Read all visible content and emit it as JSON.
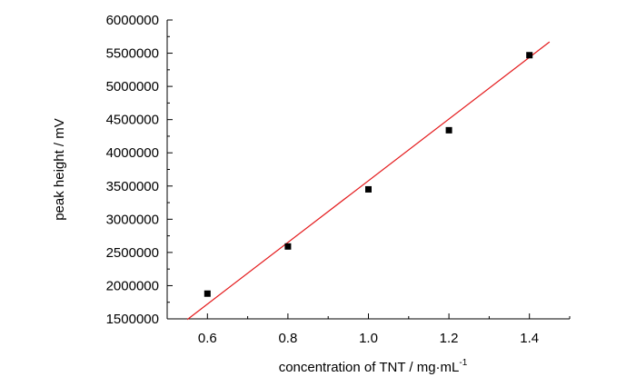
{
  "chart_data": {
    "type": "scatter",
    "title": "",
    "xlabel": "concentration of TNT / mg·mL",
    "xlabel_superscript": "-1",
    "ylabel": "peak height / mV",
    "xlim": [
      0.5,
      1.5
    ],
    "ylim": [
      1500000,
      6000000
    ],
    "x_ticks": [
      0.6,
      0.8,
      1.0,
      1.2,
      1.4
    ],
    "x_tick_labels": [
      "0.6",
      "0.8",
      "1.0",
      "1.2",
      "1.4"
    ],
    "y_ticks": [
      1500000,
      2000000,
      2500000,
      3000000,
      3500000,
      4000000,
      4500000,
      5000000,
      5500000,
      6000000
    ],
    "y_tick_labels": [
      "1500000",
      "2000000",
      "2500000",
      "3000000",
      "3500000",
      "4000000",
      "4500000",
      "5000000",
      "5500000",
      "6000000"
    ],
    "grid": false,
    "series": [
      {
        "type": "scatter",
        "marker": "square",
        "color": "#000000",
        "points": [
          {
            "x": 0.6,
            "y": 1880000
          },
          {
            "x": 0.8,
            "y": 2590000
          },
          {
            "x": 1.0,
            "y": 3450000
          },
          {
            "x": 1.2,
            "y": 4340000
          },
          {
            "x": 1.4,
            "y": 5470000
          }
        ]
      },
      {
        "type": "line",
        "role": "linear-fit",
        "color": "#e41a1c",
        "points": [
          {
            "x": 0.55,
            "y": 1490000
          },
          {
            "x": 1.45,
            "y": 5670000
          }
        ]
      }
    ]
  }
}
